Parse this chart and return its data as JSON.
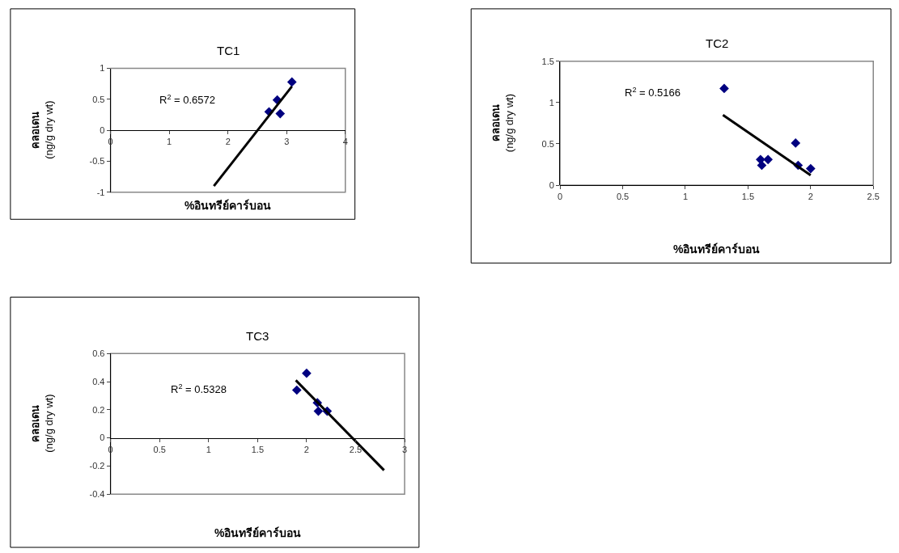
{
  "chart_data": [
    {
      "type": "scatter",
      "title": "TC1",
      "xlabel": "%อินทรีย์คาร์บอน",
      "ylabel": "คลอเดน\n(ng/g dry wt)",
      "annotations": [
        "R$^{2}$ = 0.6572"
      ],
      "grid": false,
      "xlim": [
        0,
        4
      ],
      "xticks": [
        0,
        1,
        2,
        3,
        4
      ],
      "ylim": [
        -1,
        1
      ],
      "yticks": [
        -1,
        -0.5,
        0,
        0.5,
        1
      ],
      "series": [
        {
          "color": "#000080",
          "marker": "diamond",
          "x": [
            2.7,
            2.84,
            2.89,
            3.09
          ],
          "values": [
            0.3,
            0.49,
            0.27,
            0.78
          ]
        },
        {
          "type": "line",
          "color": "#000000",
          "marker": "none",
          "line_style": "solid",
          "x": [
            1.76,
            3.09
          ],
          "values": [
            -0.9,
            0.71
          ]
        }
      ]
    },
    {
      "type": "scatter",
      "title": "TC2",
      "xlabel": "%อินทรีย์คาร์บอน",
      "ylabel": "คลอเดน\n(ng/g dry wt)",
      "annotations": [
        "R$^{2}$ = 0.5166"
      ],
      "grid": false,
      "xlim": [
        0,
        2.5
      ],
      "xticks": [
        0,
        0.5,
        1,
        1.5,
        2,
        2.5
      ],
      "ylim": [
        0,
        1.5
      ],
      "yticks": [
        0,
        0.5,
        1,
        1.5
      ],
      "series": [
        {
          "color": "#000080",
          "marker": "diamond",
          "x": [
            1.31,
            1.6,
            1.61,
            1.66,
            1.88,
            1.9,
            2.0
          ],
          "values": [
            1.17,
            0.31,
            0.24,
            0.31,
            0.51,
            0.24,
            0.2
          ]
        },
        {
          "type": "line",
          "color": "#000000",
          "marker": "none",
          "line_style": "solid",
          "x": [
            1.3,
            2.0
          ],
          "values": [
            0.85,
            0.12
          ]
        }
      ]
    },
    {
      "type": "scatter",
      "title": "TC3",
      "xlabel": "%อินทรีย์คาร์บอน",
      "ylabel": "คลอเดน\n(ng/g dry wt)",
      "annotations": [
        "R$^{2}$ = 0.5328"
      ],
      "grid": false,
      "xlim": [
        0,
        3
      ],
      "xticks": [
        0,
        0.5,
        1,
        1.5,
        2,
        2.5,
        3
      ],
      "ylim": [
        -0.4,
        0.6
      ],
      "yticks": [
        -0.4,
        -0.2,
        0,
        0.2,
        0.4,
        0.6
      ],
      "series": [
        {
          "color": "#000080",
          "marker": "diamond",
          "x": [
            2.0,
            1.9,
            2.11,
            2.12,
            2.21
          ],
          "values": [
            0.46,
            0.34,
            0.25,
            0.19,
            0.19
          ]
        },
        {
          "type": "line",
          "color": "#000000",
          "marker": "none",
          "line_style": "solid",
          "x": [
            1.89,
            2.79
          ],
          "values": [
            0.41,
            -0.23
          ]
        }
      ]
    }
  ]
}
